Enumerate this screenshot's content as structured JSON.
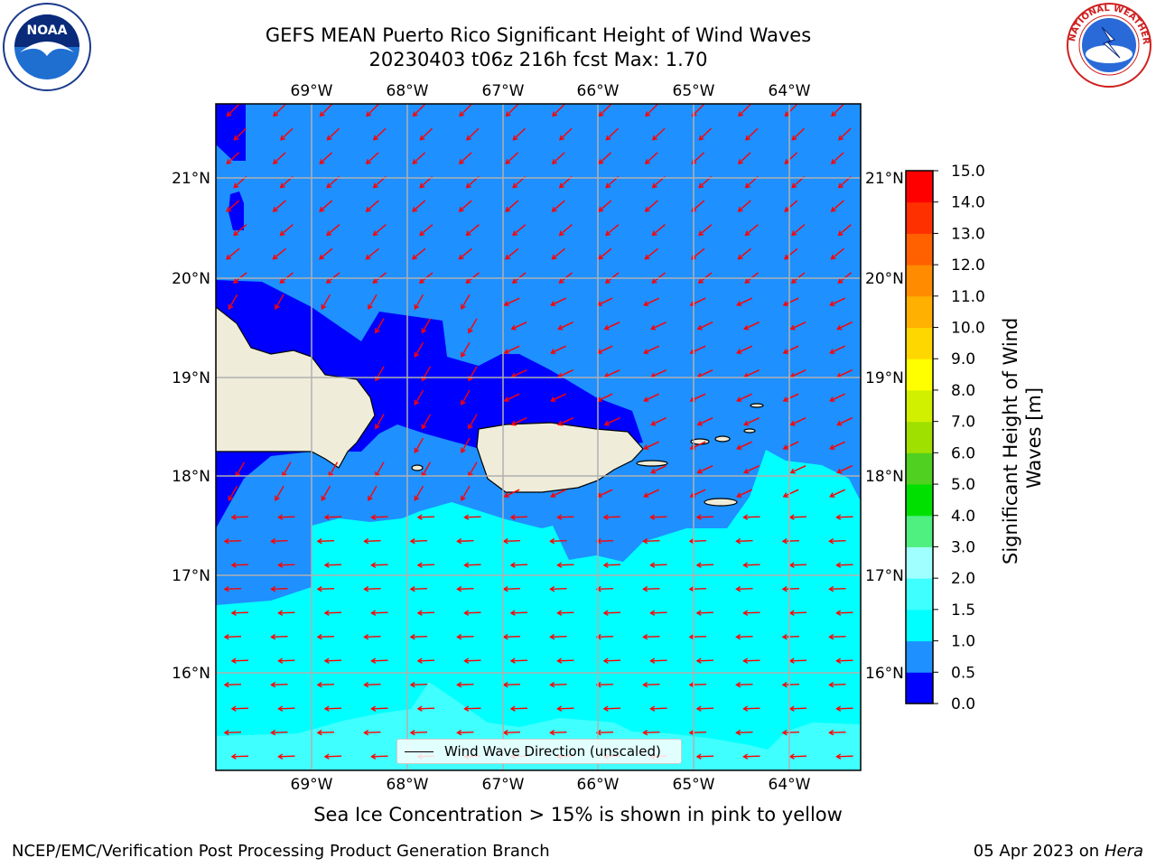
{
  "title": {
    "line1": "GEFS MEAN Puerto Rico Significant Height of Wind Waves",
    "line2": "20230403 t06z 216h fcst   Max: 1.70"
  },
  "axes": {
    "lon_labels": [
      "69°W",
      "68°W",
      "67°W",
      "66°W",
      "65°W",
      "64°W"
    ],
    "lat_labels": [
      "21°N",
      "20°N",
      "19°N",
      "18°N",
      "17°N",
      "16°N"
    ]
  },
  "colorbar": {
    "label": "Significant Height of Wind Waves [m]",
    "label_line1": "Significant Height of Wind",
    "label_line2": "Waves [m]",
    "ticks": [
      "0.0",
      "0.5",
      "1.0",
      "1.5",
      "2.0",
      "3.0",
      "4.0",
      "5.0",
      "6.0",
      "7.0",
      "8.0",
      "9.0",
      "10.0",
      "11.0",
      "12.0",
      "13.0",
      "14.0",
      "15.0"
    ],
    "colors": [
      "#0000ff",
      "#1e90ff",
      "#00ffff",
      "#40ffff",
      "#a0ffff",
      "#50f080",
      "#00e000",
      "#50d020",
      "#a0e000",
      "#d0f000",
      "#ffff00",
      "#ffd700",
      "#ffb000",
      "#ff8c00",
      "#ff6000",
      "#ff3000",
      "#ff0000"
    ]
  },
  "map_colors": {
    "deep": "#0000ff",
    "mid": "#1e90ff",
    "light": "#00ffff",
    "pale": "#40ffff",
    "land": "#efedda",
    "arrow": "#ff0000",
    "grid": "#b0b0b0"
  },
  "legend": {
    "label": "Wind Wave Direction (unscaled)"
  },
  "footer": {
    "sea_ice_note": "Sea Ice Concentration > 15% is shown in pink to yellow",
    "credit": "NCEP/EMC/Verification Post Processing Product Generation Branch",
    "date_prefix": "05 Apr 2023 on ",
    "date_machine": "Hera"
  },
  "logos": {
    "left": "NOAA",
    "right": "NATIONAL WEATHER SERVICE"
  }
}
